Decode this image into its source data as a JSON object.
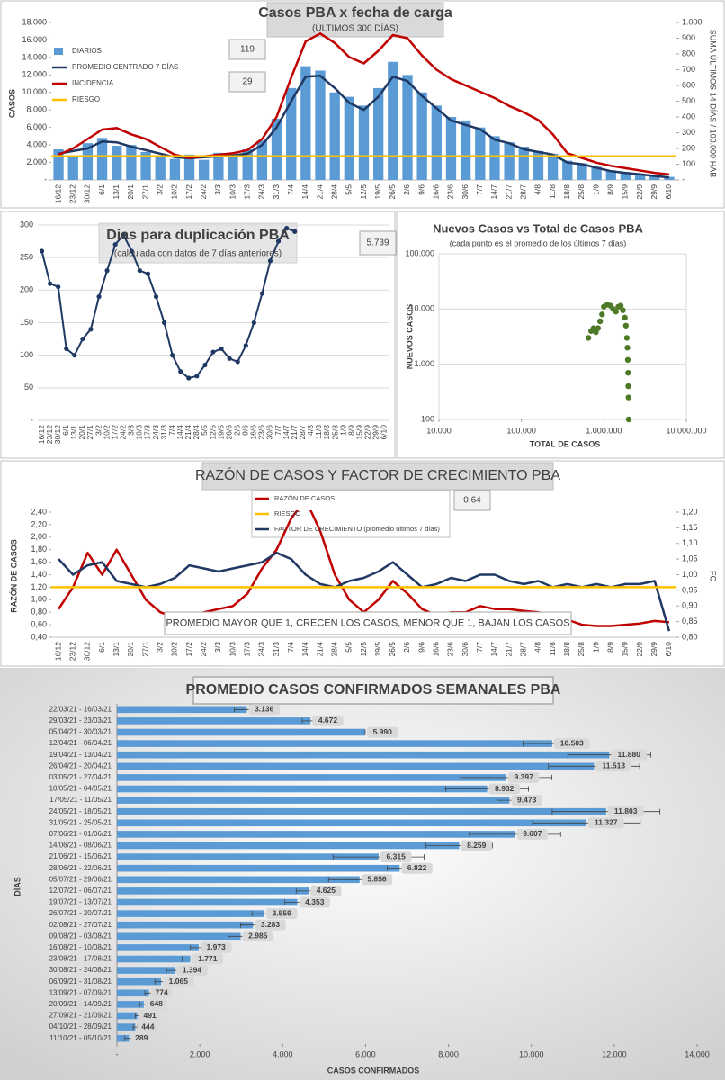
{
  "chart_data": [
    {
      "type": "combo",
      "title": "Casos PBA x fecha de carga",
      "subtitle": "(ÚLTIMOS 300 DÍAS)",
      "ylabel": "CASOS",
      "y2label": "SUMA ÚLTIMOS 14 DÍAS / 100.000 HAB",
      "categories": [
        "16/12",
        "23/12",
        "30/12",
        "6/1",
        "13/1",
        "20/1",
        "27/1",
        "3/2",
        "10/2",
        "17/2",
        "24/2",
        "3/3",
        "10/3",
        "17/3",
        "24/3",
        "31/3",
        "7/4",
        "14/4",
        "21/4",
        "28/4",
        "5/5",
        "12/5",
        "19/5",
        "26/5",
        "2/6",
        "9/6",
        "16/6",
        "23/6",
        "30/6",
        "7/7",
        "14/7",
        "21/7",
        "28/7",
        "4/8",
        "11/8",
        "18/8",
        "25/8",
        "1/9",
        "8/9",
        "15/9",
        "22/9",
        "29/9",
        "6/10"
      ],
      "series": [
        {
          "name": "DIARIOS",
          "kind": "bar",
          "color": "#5b9bd5",
          "values": [
            3500,
            2800,
            4200,
            4800,
            3900,
            4000,
            3200,
            2700,
            2400,
            2900,
            2300,
            3100,
            2600,
            3500,
            4500,
            7000,
            10500,
            13000,
            12500,
            10000,
            9500,
            8500,
            10500,
            13500,
            12000,
            10000,
            8500,
            7200,
            6800,
            6000,
            5000,
            4300,
            3800,
            3300,
            3000,
            2200,
            1900,
            1500,
            1100,
            900,
            700,
            500,
            350
          ]
        },
        {
          "name": "PROMEDIO CENTRADO 7 DÍAS",
          "color": "#1f3864",
          "values": [
            3000,
            3300,
            3600,
            4400,
            4300,
            3800,
            3400,
            3000,
            2600,
            2500,
            2600,
            2700,
            2800,
            3000,
            4000,
            6000,
            9000,
            11800,
            11900,
            10500,
            8800,
            8000,
            9500,
            11800,
            11300,
            9600,
            8200,
            6800,
            6300,
            5800,
            4600,
            4200,
            3500,
            3200,
            2900,
            2000,
            1800,
            1400,
            1000,
            800,
            650,
            450,
            300
          ]
        },
        {
          "name": "INCIDENCIA",
          "color": "#c00000",
          "axis": "y2",
          "values": [
            160,
            200,
            260,
            320,
            330,
            290,
            260,
            210,
            160,
            140,
            150,
            160,
            170,
            190,
            260,
            400,
            650,
            880,
            930,
            870,
            780,
            740,
            820,
            920,
            900,
            790,
            700,
            640,
            600,
            560,
            520,
            470,
            430,
            380,
            290,
            170,
            140,
            110,
            90,
            75,
            60,
            45,
            35
          ]
        }
      ],
      "threshold": {
        "name": "RIESGO",
        "color": "#ffc000",
        "value": 150,
        "axis": "y2"
      },
      "annotations": [
        "119",
        "29"
      ],
      "ylim": [
        0,
        18000
      ],
      "yticks": [
        {
          "value": 0,
          "label": "-"
        },
        {
          "value": 2000,
          "label": "2.000"
        },
        {
          "value": 4000,
          "label": "4.000"
        },
        {
          "value": 6000,
          "label": "6.000"
        },
        {
          "value": 8000,
          "label": "8.000"
        },
        {
          "value": 10000,
          "label": "10.000"
        },
        {
          "value": 12000,
          "label": "12.000"
        },
        {
          "value": 14000,
          "label": "14.000"
        },
        {
          "value": 16000,
          "label": "16.000"
        },
        {
          "value": 18000,
          "label": "18.000"
        }
      ],
      "y2lim": [
        0,
        1000
      ],
      "y2ticks": [
        {
          "value": 0,
          "label": "-"
        },
        100,
        200,
        300,
        400,
        500,
        600,
        700,
        800,
        900,
        {
          "value": 1000,
          "label": "1.000"
        }
      ],
      "grid": false
    },
    {
      "type": "line",
      "title": "Dias para duplicación PBA",
      "subtitle": "(calculada con datos de 7 días anteriores)",
      "color": "#1f3864",
      "markers": true,
      "categories": [
        "16/12",
        "23/12",
        "30/12",
        "6/1",
        "13/1",
        "20/1",
        "27/1",
        "3/2",
        "10/2",
        "17/2",
        "24/2",
        "3/3",
        "10/3",
        "17/3",
        "24/3",
        "31/3",
        "7/4",
        "14/4",
        "21/4",
        "28/4",
        "5/5",
        "12/5",
        "19/5",
        "26/5",
        "2/6",
        "9/6",
        "16/6",
        "23/6",
        "30/6",
        "7/7",
        "14/7",
        "21/7",
        "28/7",
        "4/8",
        "11/8",
        "18/8",
        "25/8",
        "1/9",
        "8/9",
        "15/9",
        "22/9",
        "29/9",
        "6/10"
      ],
      "series": [
        {
          "color": "#1f3864",
          "values": [
            260,
            210,
            205,
            110,
            100,
            125,
            140,
            190,
            230,
            270,
            285,
            260,
            230,
            225,
            190,
            150,
            100,
            75,
            65,
            68,
            85,
            105,
            110,
            95,
            90,
            115,
            150,
            195,
            245,
            275,
            295,
            290,
            null,
            null,
            null,
            null,
            null,
            null,
            null,
            null,
            null,
            null,
            null
          ]
        }
      ],
      "annotations": [
        "5.739"
      ],
      "ylim": [
        0,
        300
      ],
      "yticks": [
        {
          "value": 0,
          "label": "-"
        },
        50,
        100,
        150,
        200,
        250,
        300
      ],
      "grid": true
    },
    {
      "type": "scatter",
      "title": "Nuevos Casos vs Total de Casos PBA",
      "subtitle": "(cada punto es el promedio de los últimos 7 días)",
      "xlabel": "TOTAL DE CASOS",
      "ylabel": "NUEVOS CASOS",
      "color": "#4e7a27",
      "x": [
        650000,
        700000,
        750000,
        800000,
        850000,
        900000,
        950000,
        1000000,
        1100000,
        1200000,
        1300000,
        1400000,
        1500000,
        1600000,
        1700000,
        1800000,
        1850000,
        1900000,
        1930000,
        1950000,
        1970000,
        1980000,
        1990000,
        2000000
      ],
      "y": [
        3000,
        4000,
        4500,
        3800,
        4500,
        6000,
        8000,
        11000,
        12000,
        11500,
        10000,
        9000,
        11000,
        11500,
        9500,
        7000,
        5000,
        3000,
        2000,
        1200,
        700,
        400,
        250,
        100
      ],
      "xscale": "log",
      "yscale": "log",
      "xlim": [
        10000,
        10000000
      ],
      "xticks": [
        {
          "value": 10000,
          "label": "10.000"
        },
        {
          "value": 100000,
          "label": "100.000"
        },
        {
          "value": 1000000,
          "label": "1.000.000"
        },
        {
          "value": 10000000,
          "label": "10.000.000"
        }
      ],
      "ylim": [
        100,
        100000
      ],
      "yticks": [
        100,
        {
          "value": 1000,
          "label": "1.000"
        },
        {
          "value": 10000,
          "label": "10.000"
        },
        {
          "value": 100000,
          "label": "100.000"
        }
      ],
      "grid": true
    },
    {
      "type": "line",
      "title": "RAZÓN DE CASOS Y FACTOR DE CRECIMIENTO PBA",
      "ylabel": "RAZÓN DE CASOS",
      "y2label": "FC",
      "categories": [
        "16/12",
        "23/12",
        "30/12",
        "6/1",
        "13/1",
        "20/1",
        "27/1",
        "3/2",
        "10/2",
        "17/2",
        "24/2",
        "3/3",
        "10/3",
        "17/3",
        "24/3",
        "31/3",
        "7/4",
        "14/4",
        "21/4",
        "28/4",
        "5/5",
        "12/5",
        "19/5",
        "26/5",
        "2/6",
        "9/6",
        "16/6",
        "23/6",
        "30/6",
        "7/7",
        "14/7",
        "21/7",
        "28/7",
        "4/8",
        "11/8",
        "18/8",
        "25/8",
        "1/9",
        "8/9",
        "15/9",
        "22/9",
        "29/9",
        "6/10"
      ],
      "series": [
        {
          "name": "RAZÓN DE CASOS",
          "color": "#c00000",
          "values": [
            0.85,
            1.2,
            1.75,
            1.4,
            1.8,
            1.4,
            1.0,
            0.8,
            0.72,
            0.75,
            0.8,
            0.85,
            0.9,
            1.1,
            1.5,
            1.8,
            2.3,
            2.6,
            2.1,
            1.4,
            1.0,
            0.8,
            1.0,
            1.3,
            1.1,
            0.85,
            0.75,
            0.8,
            0.8,
            0.9,
            0.85,
            0.85,
            0.82,
            0.8,
            0.75,
            0.68,
            0.6,
            0.58,
            0.58,
            0.6,
            0.62,
            0.66,
            0.64
          ]
        },
        {
          "name": "FACTOR DE CRECIMIENTO (promedio últimos 7 días)",
          "color": "#1f3864",
          "axis": "y2",
          "values": [
            1.05,
            1.0,
            1.03,
            1.04,
            0.98,
            0.97,
            0.96,
            0.97,
            0.99,
            1.03,
            1.02,
            1.01,
            1.02,
            1.03,
            1.04,
            1.07,
            1.05,
            1.0,
            0.97,
            0.96,
            0.98,
            0.99,
            1.01,
            1.04,
            1.0,
            0.96,
            0.97,
            0.99,
            0.98,
            1.0,
            1.0,
            0.98,
            0.97,
            0.98,
            0.96,
            0.97,
            0.96,
            0.97,
            0.96,
            0.97,
            0.97,
            0.98,
            0.82
          ]
        }
      ],
      "threshold": {
        "name": "RIESGO",
        "color": "#ffc000",
        "value": 1.2
      },
      "annotations": [
        "0,64",
        "PROMEDIO MAYOR QUE 1, CRECEN LOS CASOS, MENOR QUE 1, BAJAN LOS CASOS"
      ],
      "ylim": [
        0.4,
        2.4
      ],
      "yticks": [
        {
          "value": 0.4,
          "label": "0,40"
        },
        {
          "value": 0.6,
          "label": "0,60"
        },
        {
          "value": 0.8,
          "label": "0,80"
        },
        {
          "value": 1.0,
          "label": "1,00"
        },
        {
          "value": 1.2,
          "label": "1,20"
        },
        {
          "value": 1.4,
          "label": "1,40"
        },
        {
          "value": 1.6,
          "label": "1,60"
        },
        {
          "value": 1.8,
          "label": "1,80"
        },
        {
          "value": 2.0,
          "label": "2,00"
        },
        {
          "value": 2.2,
          "label": "2,20"
        },
        {
          "value": 2.4,
          "label": "2,40"
        }
      ],
      "y2lim": [
        0.8,
        1.2
      ],
      "y2ticks": [
        {
          "value": 0.8,
          "label": "0,80"
        },
        {
          "value": 0.85,
          "label": "0,85"
        },
        {
          "value": 0.9,
          "label": "0,90"
        },
        {
          "value": 0.95,
          "label": "0,95"
        },
        {
          "value": 1.0,
          "label": "1,00"
        },
        {
          "value": 1.05,
          "label": "1,05"
        },
        {
          "value": 1.1,
          "label": "1,10"
        },
        {
          "value": 1.15,
          "label": "1,15"
        },
        {
          "value": 1.2,
          "label": "1,20"
        }
      ],
      "grid": false
    },
    {
      "type": "bar",
      "orientation": "horizontal",
      "title": "PROMEDIO CASOS CONFIRMADOS SEMANALES PBA",
      "xlabel": "CASOS CONFIRMADOS",
      "ylabel": "DÍAS",
      "color": "#5b9bd5",
      "categories": [
        "22/03/21 - 16/03/21",
        "29/03/21 - 23/03/21",
        "05/04/21 - 30/03/21",
        "12/04/21 - 06/04/21",
        "19/04/21 - 13/04/21",
        "26/04/21 - 20/04/21",
        "03/05/21 - 27/04/21",
        "10/05/21 - 04/05/21",
        "17/05/21 - 11/05/21",
        "24/05/21 - 18/05/21",
        "31/05/21 - 25/05/21",
        "07/06/21 - 01/06/21",
        "14/06/21 - 08/06/21",
        "21/06/21 - 15/06/21",
        "28/06/21 - 22/06/21",
        "05/07/21 - 29/06/21",
        "12/07/21 - 06/07/21",
        "19/07/21 - 13/07/21",
        "26/07/21 - 20/07/21",
        "02/08/21 - 27/07/21",
        "09/08/21 - 03/08/21",
        "16/08/21 - 10/08/21",
        "23/08/21 - 17/08/21",
        "30/08/21 - 24/08/21",
        "06/09/21 - 31/08/21",
        "13/09/21 - 07/09/21",
        "20/09/21 - 14/09/21",
        "27/09/21 - 21/09/21",
        "04/10/21 - 28/09/21",
        "11/10/21 - 05/10/21"
      ],
      "values": [
        3136,
        4672,
        5990,
        10503,
        11880,
        11513,
        9397,
        8932,
        9473,
        11803,
        11327,
        9607,
        8259,
        6315,
        6822,
        5856,
        4625,
        4353,
        3559,
        3283,
        2985,
        1973,
        1771,
        1394,
        1065,
        774,
        648,
        491,
        444,
        289
      ],
      "value_labels": [
        "3.136",
        "4.672",
        "5.990",
        "10.503",
        "11.880",
        "11.513",
        "9.397",
        "8.932",
        "9.473",
        "11.803",
        "11.327",
        "9.607",
        "8.259",
        "6.315",
        "6.822",
        "5.856",
        "4.625",
        "4.353",
        "3.559",
        "3.283",
        "2.985",
        "1.973",
        "1.771",
        "1.394",
        "1.065",
        "774",
        "648",
        "491",
        "444",
        "289"
      ],
      "errors": [
        300,
        200,
        0,
        700,
        1000,
        1100,
        1100,
        1000,
        300,
        1300,
        1300,
        1100,
        800,
        1100,
        300,
        750,
        300,
        300,
        300,
        300,
        300,
        200,
        200,
        200,
        150,
        100,
        100,
        50,
        50,
        100
      ],
      "xlim": [
        0,
        14000
      ],
      "xticks": [
        {
          "value": 0,
          "label": "-"
        },
        {
          "value": 2000,
          "label": "2.000"
        },
        {
          "value": 4000,
          "label": "4.000"
        },
        {
          "value": 6000,
          "label": "6.000"
        },
        {
          "value": 8000,
          "label": "8.000"
        },
        {
          "value": 10000,
          "label": "10.000"
        },
        {
          "value": 12000,
          "label": "12.000"
        },
        {
          "value": 14000,
          "label": "14.000"
        }
      ],
      "grid": false
    }
  ]
}
